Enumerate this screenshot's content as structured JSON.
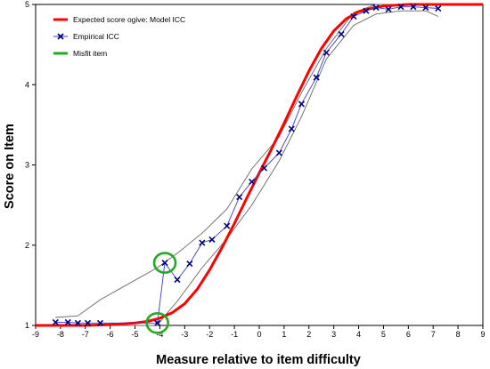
{
  "chart_data": {
    "type": "line",
    "xlabel": "Measure relative to item difficulty",
    "ylabel": "Score on Item",
    "xlim": [
      -9,
      9
    ],
    "ylim": [
      1,
      5
    ],
    "x_ticks": [
      -9,
      -8,
      -7,
      -6,
      -5,
      -4,
      -3,
      -2,
      -1,
      0,
      1,
      2,
      3,
      4,
      5,
      6,
      7,
      8,
      9
    ],
    "x_tick_labels": [
      "-9",
      "-8",
      "-7",
      "-6",
      "-5",
      "-4",
      "-3",
      "-2",
      "-1",
      "0",
      "1",
      "2",
      "3",
      "4",
      "5",
      "6",
      "7",
      "8",
      "9"
    ],
    "y_ticks": [
      1,
      2,
      3,
      4,
      5
    ],
    "y_tick_labels": [
      "1",
      "2",
      "3",
      "4",
      "5"
    ],
    "grid": false,
    "legend_position": "top-left",
    "legend": [
      {
        "label": "Expected score ogive: Model ICC",
        "color": "#ff0000",
        "marker": "line"
      },
      {
        "label": "Empirical ICC",
        "color": "#00007f",
        "marker": "x"
      },
      {
        "label": "Misfit item",
        "color": "#22aa22",
        "marker": "line"
      }
    ],
    "series": [
      {
        "name": "Expected score ogive: Model ICC",
        "kind": "model",
        "color": "#ff0000",
        "x": [
          -9,
          -8,
          -7,
          -6,
          -5,
          -4.5,
          -4,
          -3.5,
          -3,
          -2.5,
          -2,
          -1.5,
          -1,
          -0.5,
          0,
          0.5,
          1,
          1.5,
          2,
          2.5,
          3,
          3.5,
          4,
          4.5,
          5,
          6,
          7,
          8,
          9
        ],
        "y": [
          1.0,
          1.0,
          1.0,
          1.01,
          1.03,
          1.05,
          1.09,
          1.16,
          1.27,
          1.45,
          1.69,
          1.97,
          2.27,
          2.59,
          2.9,
          3.2,
          3.52,
          3.85,
          4.17,
          4.45,
          4.67,
          4.82,
          4.91,
          4.95,
          4.98,
          5.0,
          5.0,
          5.0,
          5.0
        ]
      },
      {
        "name": "Empirical ICC",
        "kind": "empirical",
        "color": "#00007f",
        "x": [
          -8.2,
          -7.7,
          -7.3,
          -6.9,
          -6.4,
          -4.1,
          -3.8,
          -3.3,
          -2.8,
          -2.3,
          -1.9,
          -1.3,
          -0.8,
          -0.3,
          0.2,
          0.8,
          1.3,
          1.7,
          2.3,
          2.7,
          3.3,
          3.8,
          4.3,
          4.7,
          5.2,
          5.7,
          6.2,
          6.7,
          7.2
        ],
        "y": [
          1.04,
          1.04,
          1.03,
          1.03,
          1.03,
          1.03,
          1.78,
          1.57,
          1.77,
          2.03,
          2.07,
          2.24,
          2.6,
          2.79,
          2.96,
          3.15,
          3.45,
          3.76,
          4.09,
          4.4,
          4.63,
          4.85,
          4.92,
          4.96,
          4.94,
          4.97,
          4.97,
          4.96,
          4.95
        ]
      },
      {
        "kind": "band-upper",
        "color": "#666666",
        "x": [
          -8.2,
          -7.3,
          -6.4,
          -4.1,
          -3.3,
          -2.3,
          -1.3,
          -0.3,
          0.8,
          1.7,
          2.7,
          3.8,
          4.7,
          5.7,
          6.7,
          7.2
        ],
        "y": [
          1.1,
          1.12,
          1.32,
          1.72,
          1.9,
          2.15,
          2.45,
          2.95,
          3.35,
          3.9,
          4.45,
          4.9,
          5.0,
          5.0,
          5.0,
          4.99
        ]
      },
      {
        "kind": "band-lower",
        "color": "#666666",
        "x": [
          -8.2,
          -7.3,
          -6.4,
          -4.3,
          -4.1,
          -3.8,
          -3.3,
          -2.3,
          -1.3,
          -0.3,
          0.8,
          1.7,
          2.7,
          3.8,
          4.7,
          5.7,
          6.7,
          7.2
        ],
        "y": [
          1.0,
          1.0,
          1.0,
          1.0,
          1.0,
          1.12,
          1.3,
          1.72,
          2.08,
          2.5,
          3.05,
          3.6,
          4.32,
          4.74,
          4.88,
          4.92,
          4.92,
          4.85
        ]
      }
    ],
    "annotations": [
      {
        "type": "ellipse",
        "label": "Misfit item",
        "color": "#22aa22",
        "x": -3.8,
        "y": 1.78
      },
      {
        "type": "ellipse",
        "label": "Misfit item",
        "color": "#22aa22",
        "x": -4.1,
        "y": 1.03
      }
    ]
  }
}
